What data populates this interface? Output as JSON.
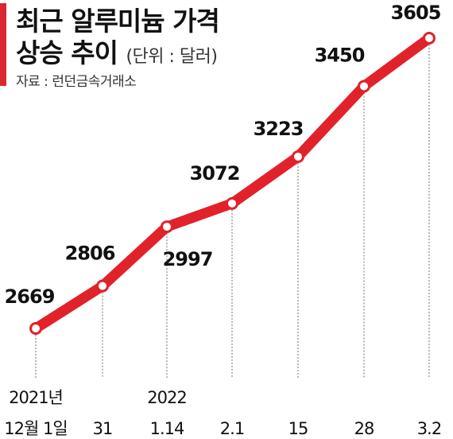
{
  "header": {
    "title_line1": "최근 알루미늄 가격",
    "title_line2": "상승 추이",
    "unit": "(단위 : 달러)",
    "source": "자료 : 런던금속거래소"
  },
  "colors": {
    "line": "#e1222b",
    "accent": "#d9282f",
    "text": "#111111",
    "guide": "#888888"
  },
  "chart_data": {
    "type": "line",
    "title": "최근 알루미늄 가격 상승 추이",
    "subtitle": "(단위 : 달러)",
    "source": "자료 : 런던금속거래소",
    "xlabel": "",
    "ylabel": "",
    "grid": false,
    "legend": "none",
    "ylim": [
      2669,
      3605
    ],
    "points": [
      {
        "x_line1": "2021년",
        "x_line2": "12월 1일",
        "value": 2669,
        "label": "2669"
      },
      {
        "x_line1": "",
        "x_line2": "31",
        "value": 2806,
        "label": "2806"
      },
      {
        "x_line1": "2022",
        "x_line2": "1.14",
        "value": 2997,
        "label": "2997"
      },
      {
        "x_line1": "",
        "x_line2": "2.1",
        "value": 3072,
        "label": "3072"
      },
      {
        "x_line1": "",
        "x_line2": "15",
        "value": 3223,
        "label": "3223"
      },
      {
        "x_line1": "",
        "x_line2": "28",
        "value": 3450,
        "label": "3450"
      },
      {
        "x_line1": "",
        "x_line2": "3.2",
        "value": 3605,
        "label": "3605"
      }
    ]
  }
}
